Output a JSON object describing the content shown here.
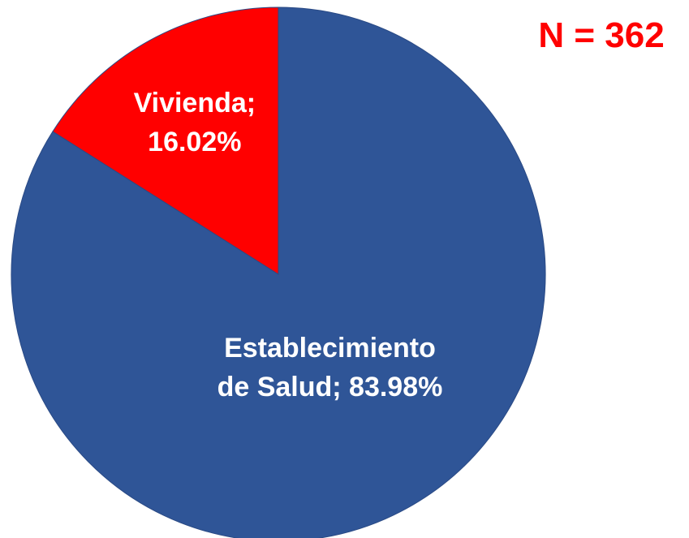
{
  "chart_data": {
    "type": "pie",
    "values": [
      83.98,
      16.02
    ],
    "value_labels": [
      "Establecimiento de Salud; 83.98%",
      "Vivienda; 16.02%"
    ],
    "colors": [
      "#2f5597",
      "#ff0000"
    ],
    "annotation": "N = 362"
  }
}
